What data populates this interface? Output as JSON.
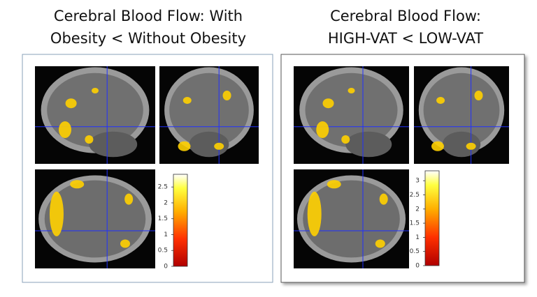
{
  "panels": [
    {
      "title": [
        "Cerebral Blood Flow: With",
        "Obesity < Without Obesity"
      ],
      "colorbar": {
        "range": [
          0,
          2.9
        ],
        "ticks": [
          0,
          0.5,
          1,
          1.5,
          2,
          2.5
        ]
      }
    },
    {
      "title": [
        "Cerebral Blood Flow:",
        "HIGH-VAT < LOW-VAT"
      ],
      "colorbar": {
        "range": [
          0,
          3.35
        ],
        "ticks": [
          0,
          0.5,
          1,
          1.5,
          2,
          2.5,
          3
        ]
      }
    }
  ]
}
